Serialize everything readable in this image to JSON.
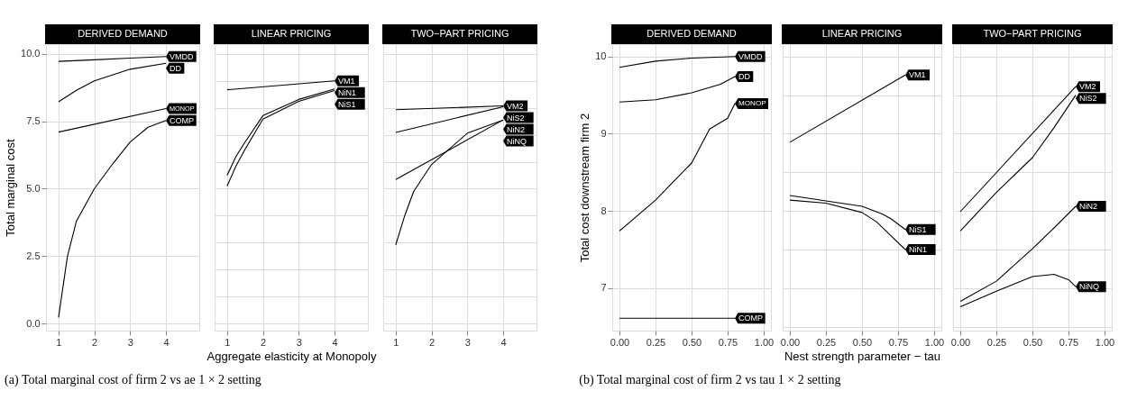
{
  "chart_data": [
    {
      "type": "line",
      "title": "DERIVED DEMAND",
      "ylabel": "Total marginal cost",
      "annotations": [
        "(a)  Total marginal cost of firm 2 vs ae 1 × 2 setting"
      ],
      "legend": "right",
      "xlim": [
        0.65,
        4.93
      ],
      "xticks": [
        1,
        2,
        3,
        4
      ],
      "ylim": [
        -0.26,
        10.36
      ],
      "yticks": [
        {
          "value": 0,
          "label": "0.0"
        },
        {
          "value": 2.5,
          "label": "2.5"
        },
        {
          "value": 5,
          "label": "5.0"
        },
        {
          "value": 7.5,
          "label": "7.5"
        },
        {
          "value": 10,
          "label": "10.0"
        }
      ],
      "grid": true,
      "series": [
        {
          "name": "VMDD",
          "color": "#000000",
          "x": [
            1,
            2,
            3,
            4
          ],
          "values": [
            9.72,
            9.78,
            9.84,
            9.9
          ]
        },
        {
          "name": "DD",
          "color": "#000000",
          "x": [
            1,
            1.5,
            2,
            3,
            4
          ],
          "values": [
            8.22,
            8.65,
            9.0,
            9.43,
            9.65
          ]
        },
        {
          "name": "MONOP",
          "color": "#000000",
          "x": [
            1,
            4
          ],
          "values": [
            7.1,
            7.97
          ]
        },
        {
          "name": "COMP",
          "color": "#000000",
          "x": [
            1,
            1.25,
            1.5,
            2,
            2.5,
            3,
            3.5,
            4
          ],
          "values": [
            0.23,
            2.5,
            3.8,
            5.0,
            5.9,
            6.73,
            7.28,
            7.53
          ]
        }
      ]
    },
    {
      "type": "line",
      "title": "LINEAR PRICING",
      "xlabel": "Aggregate elasticity at Monopoly",
      "legend": "right",
      "xlim": [
        0.65,
        4.93
      ],
      "xticks": [
        1,
        2,
        3,
        4
      ],
      "ylim": [
        -0.26,
        10.36
      ],
      "tick_labels": "x",
      "grid": true,
      "series": [
        {
          "name": "VM1",
          "color": "#000000",
          "x": [
            1,
            4
          ],
          "values": [
            8.67,
            9.0
          ]
        },
        {
          "name": "NiN1",
          "color": "#000000",
          "x": [
            1,
            1.25,
            1.5,
            2,
            3,
            4
          ],
          "values": [
            5.5,
            6.2,
            6.73,
            7.71,
            8.31,
            8.7
          ]
        },
        {
          "name": "NiS1",
          "color": "#000000",
          "x": [
            1,
            1.25,
            1.5,
            2,
            3,
            4
          ],
          "values": [
            5.1,
            5.85,
            6.46,
            7.58,
            8.24,
            8.64
          ]
        }
      ]
    },
    {
      "type": "line",
      "title": "TWO−PART PRICING",
      "legend": "right",
      "xlim": [
        0.65,
        4.93
      ],
      "xticks": [
        1,
        2,
        3,
        4
      ],
      "ylim": [
        -0.26,
        10.36
      ],
      "tick_labels": "x",
      "grid": true,
      "series": [
        {
          "name": "VM2",
          "color": "#000000",
          "x": [
            1,
            4
          ],
          "values": [
            7.93,
            8.07
          ]
        },
        {
          "name": "NiS2",
          "color": "#000000",
          "x": [
            1,
            4
          ],
          "values": [
            7.09,
            8.04
          ]
        },
        {
          "name": "NiN2",
          "color": "#000000",
          "x": [
            1,
            4
          ],
          "values": [
            5.34,
            7.55
          ]
        },
        {
          "name": "NiNQ",
          "color": "#000000",
          "x": [
            1,
            1.25,
            1.5,
            2,
            3,
            4
          ],
          "values": [
            2.92,
            4.0,
            4.9,
            5.9,
            7.06,
            7.55
          ]
        }
      ]
    },
    {
      "type": "line",
      "title": "DERIVED DEMAND",
      "ylabel": "Total cost downstream firm 2",
      "annotations": [
        "(b)  Total marginal cost of firm 2 vs tau 1 × 2 setting"
      ],
      "legend": "right",
      "xlim": [
        -0.05,
        1.05
      ],
      "xticks": [
        {
          "value": 0,
          "label": "0.00"
        },
        {
          "value": 0.25,
          "label": "0.25"
        },
        {
          "value": 0.5,
          "label": "0.50"
        },
        {
          "value": 0.75,
          "label": "0.75"
        },
        {
          "value": 1,
          "label": "1.00"
        }
      ],
      "ylim": [
        6.45,
        10.16
      ],
      "yticks": [
        7,
        8,
        9,
        10
      ],
      "grid": true,
      "series": [
        {
          "name": "VMDD",
          "color": "#000000",
          "x": [
            0,
            0.25,
            0.5,
            0.8
          ],
          "values": [
            9.86,
            9.94,
            9.98,
            10.0
          ]
        },
        {
          "name": "DD",
          "color": "#000000",
          "x": [
            0,
            0.25,
            0.5,
            0.7,
            0.8
          ],
          "values": [
            9.41,
            9.44,
            9.53,
            9.64,
            9.74
          ]
        },
        {
          "name": "MONOP",
          "color": "#000000",
          "x": [
            0,
            0.25,
            0.5,
            0.625,
            0.75,
            0.8
          ],
          "values": [
            7.74,
            8.14,
            8.62,
            9.06,
            9.2,
            9.39
          ]
        },
        {
          "name": "COMP",
          "color": "#000000",
          "x": [
            0,
            0.8
          ],
          "values": [
            6.61,
            6.61
          ]
        }
      ]
    },
    {
      "type": "line",
      "title": "LINEAR PRICING",
      "xlabel": "Nest strength parameter − tau",
      "legend": "right",
      "xlim": [
        -0.05,
        1.05
      ],
      "xticks": [
        {
          "value": 0,
          "label": "0.00"
        },
        {
          "value": 0.25,
          "label": "0.25"
        },
        {
          "value": 0.5,
          "label": "0.50"
        },
        {
          "value": 0.75,
          "label": "0.75"
        },
        {
          "value": 1,
          "label": "1.00"
        }
      ],
      "ylim": [
        6.45,
        10.16
      ],
      "tick_labels": "x",
      "grid": true,
      "series": [
        {
          "name": "VM1",
          "color": "#000000",
          "x": [
            0,
            0.8
          ],
          "values": [
            8.89,
            9.76
          ]
        },
        {
          "name": "NiS1",
          "color": "#000000",
          "x": [
            0,
            0.25,
            0.5,
            0.64,
            0.7,
            0.8
          ],
          "values": [
            8.2,
            8.13,
            8.06,
            7.96,
            7.9,
            7.76
          ]
        },
        {
          "name": "NiN1",
          "color": "#000000",
          "x": [
            0,
            0.25,
            0.5,
            0.6,
            0.7,
            0.8
          ],
          "values": [
            8.14,
            8.1,
            7.98,
            7.86,
            7.68,
            7.5
          ]
        }
      ]
    },
    {
      "type": "line",
      "title": "TWO−PART PRICING",
      "legend": "right",
      "xlim": [
        -0.05,
        1.05
      ],
      "xticks": [
        {
          "value": 0,
          "label": "0.00"
        },
        {
          "value": 0.25,
          "label": "0.25"
        },
        {
          "value": 0.5,
          "label": "0.50"
        },
        {
          "value": 0.75,
          "label": "0.75"
        },
        {
          "value": 1,
          "label": "1.00"
        }
      ],
      "ylim": [
        6.45,
        10.16
      ],
      "tick_labels": "x",
      "grid": true,
      "series": [
        {
          "name": "VM2",
          "color": "#000000",
          "x": [
            0,
            0.8
          ],
          "values": [
            7.99,
            9.61
          ]
        },
        {
          "name": "NiS2",
          "color": "#000000",
          "x": [
            0,
            0.25,
            0.5,
            0.65,
            0.8
          ],
          "values": [
            7.74,
            8.24,
            8.69,
            9.08,
            9.5
          ]
        },
        {
          "name": "NiN2",
          "color": "#000000",
          "x": [
            0,
            0.25,
            0.5,
            0.65,
            0.8
          ],
          "values": [
            6.83,
            7.09,
            7.51,
            7.78,
            8.06
          ]
        },
        {
          "name": "NiNQ",
          "color": "#000000",
          "x": [
            0,
            0.25,
            0.5,
            0.65,
            0.75,
            0.8
          ],
          "values": [
            6.76,
            6.96,
            7.15,
            7.18,
            7.11,
            7.02
          ]
        }
      ]
    }
  ]
}
